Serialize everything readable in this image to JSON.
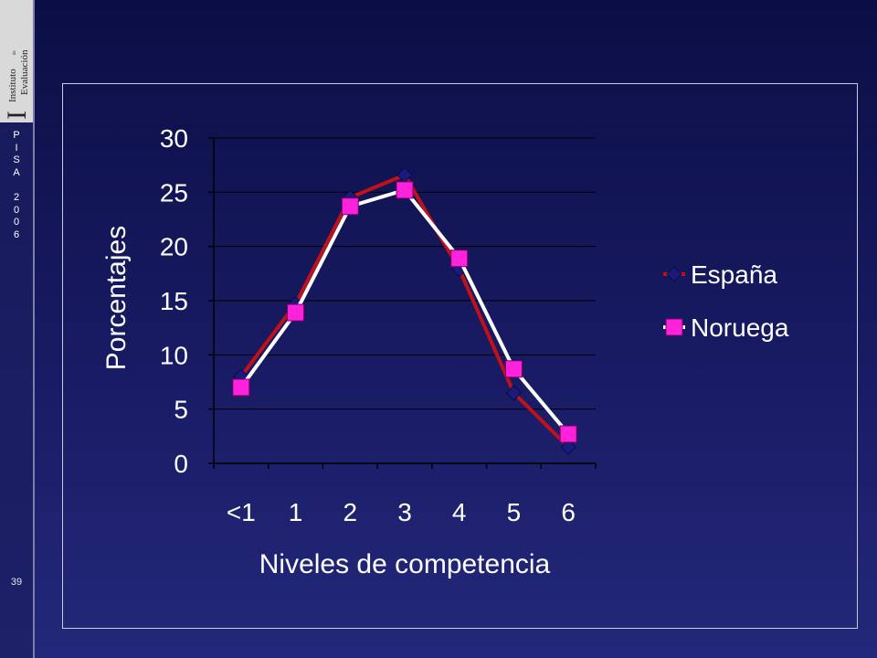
{
  "sidebar": {
    "logo": {
      "text_instituto": "Instituto",
      "text_de": "de",
      "text_evaluacion": "Evaluación"
    },
    "pisa_letters": [
      "P",
      "I",
      "S",
      "A",
      "",
      "2",
      "0",
      "0",
      "6"
    ],
    "page_number": "39"
  },
  "chart_data": {
    "type": "line",
    "title": "",
    "xlabel": "Niveles de competencia",
    "ylabel": "Porcentajes",
    "categories": [
      "<1",
      "1",
      "2",
      "3",
      "4",
      "5",
      "6"
    ],
    "yticks": [
      "0",
      "5",
      "10",
      "15",
      "20",
      "25",
      "30"
    ],
    "ylim": [
      0,
      30
    ],
    "grid": true,
    "legend_position": "right",
    "series": [
      {
        "name": "España",
        "values": [
          8.0,
          14.7,
          24.5,
          26.6,
          17.9,
          6.5,
          1.5
        ],
        "line_color": "#c0101a",
        "marker": "diamond",
        "marker_color": "#1a1a7a"
      },
      {
        "name": "Noruega",
        "values": [
          7.0,
          13.9,
          23.7,
          25.2,
          18.9,
          8.7,
          2.7
        ],
        "line_color": "#ffffff",
        "marker": "square",
        "marker_color": "#ff22dd"
      }
    ]
  }
}
